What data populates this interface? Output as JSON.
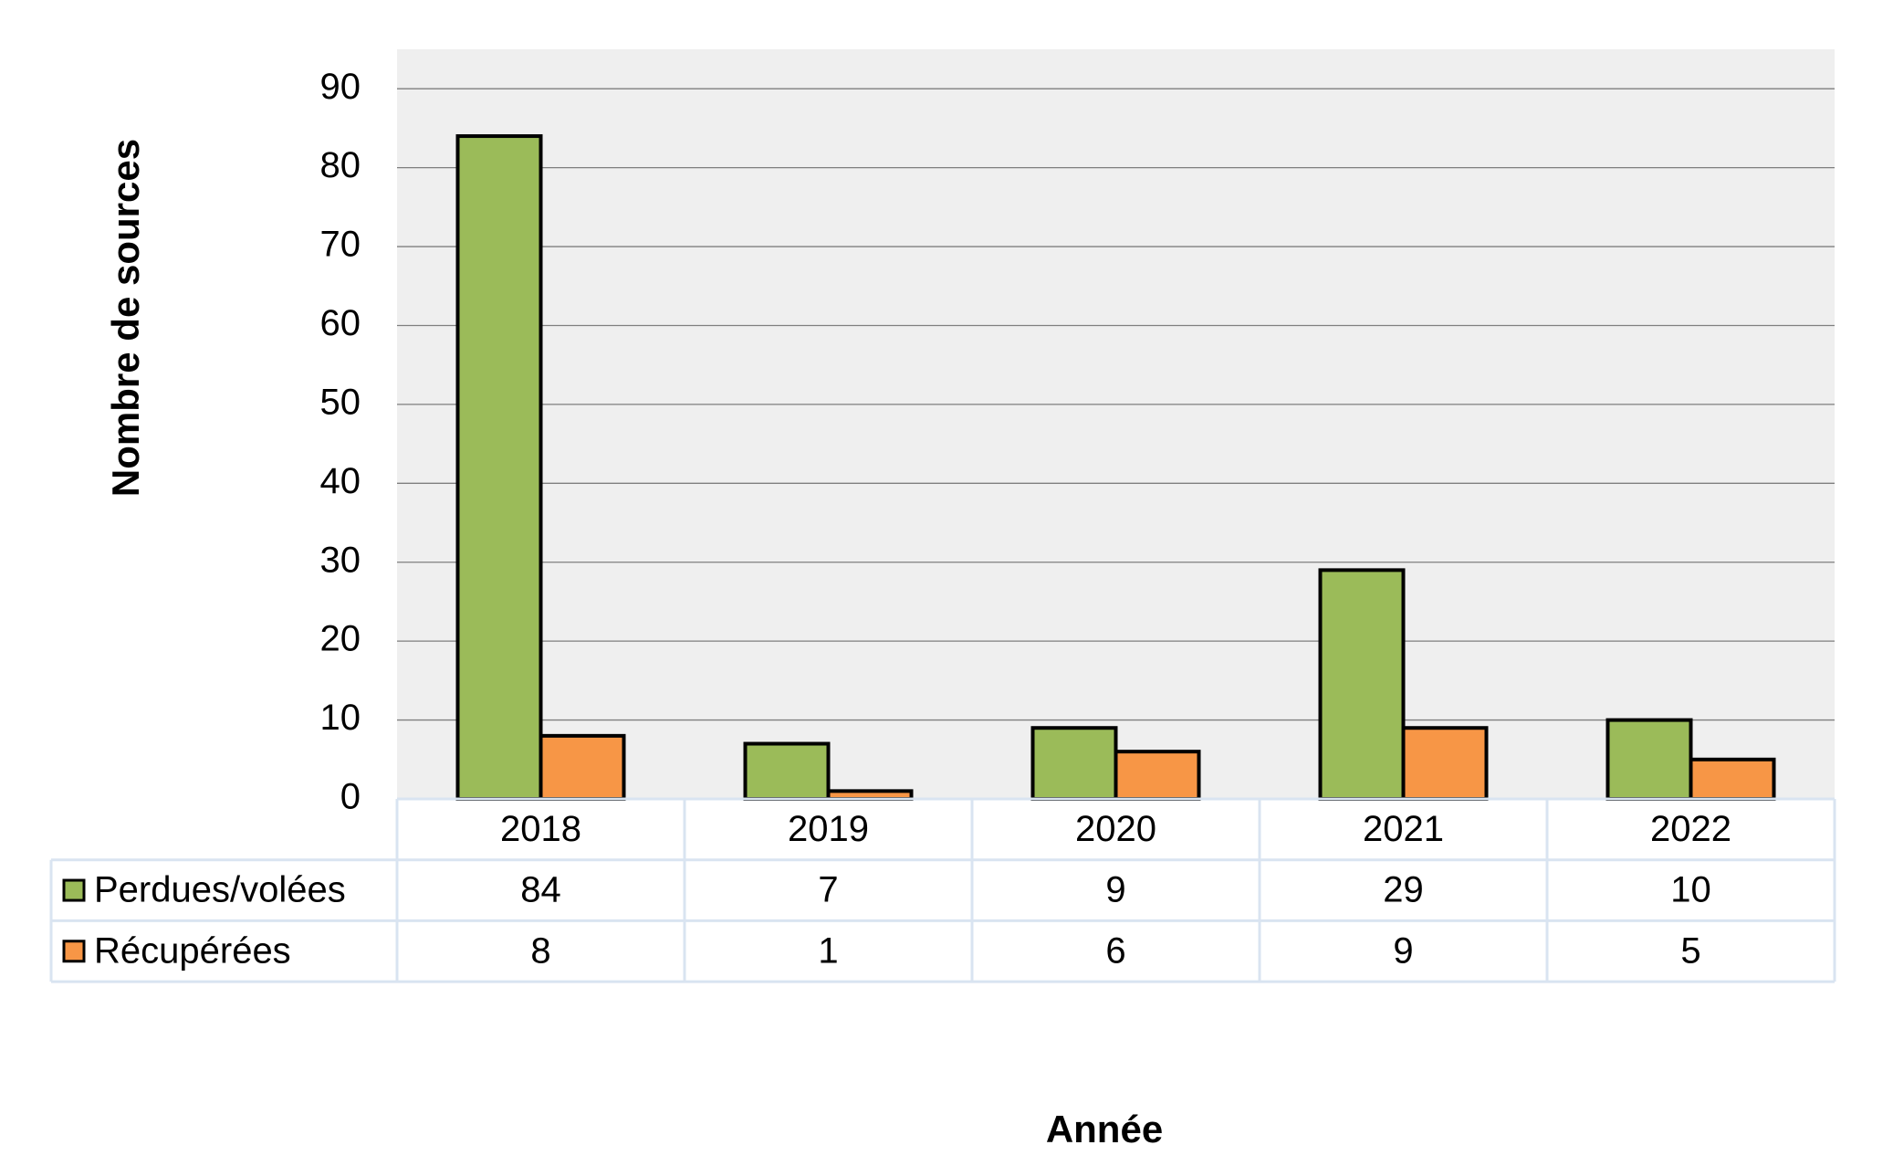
{
  "chart_data": {
    "type": "bar",
    "x_label": "Année",
    "y_label": "Nombre de sources",
    "categories": [
      "2018",
      "2019",
      "2020",
      "2021",
      "2022"
    ],
    "series": [
      {
        "name": "Perdues/volées",
        "color": "#9bbb59",
        "values": [
          84,
          7,
          9,
          29,
          10
        ]
      },
      {
        "name": "Récupérées",
        "color": "#f79646",
        "values": [
          8,
          1,
          6,
          9,
          5
        ]
      }
    ],
    "ylim": [
      0,
      95
    ],
    "yticks": [
      0,
      10,
      20,
      30,
      40,
      50,
      60,
      70,
      80,
      90
    ],
    "grid": true,
    "data_table": true
  }
}
